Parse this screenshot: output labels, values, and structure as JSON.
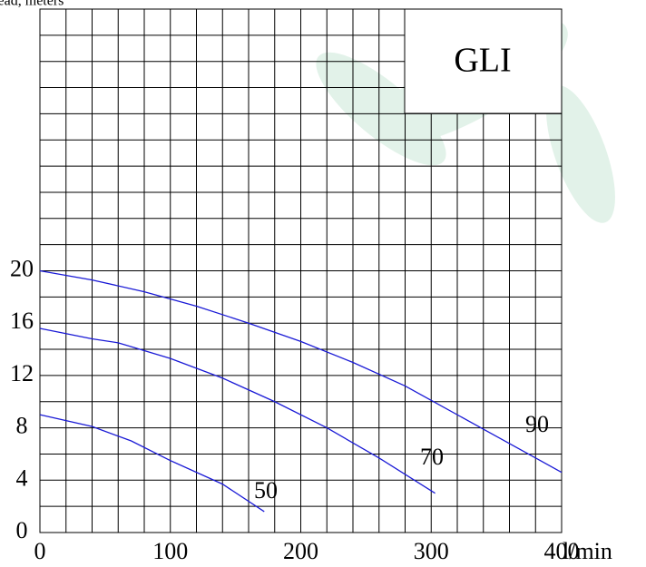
{
  "chart_data": {
    "type": "line",
    "y_label": "Head, meters",
    "x_label": "l/min",
    "annotation": "GLI",
    "xlim": [
      0,
      400
    ],
    "xticks": [
      0,
      100,
      200,
      300,
      400
    ],
    "ylim": [
      0,
      40
    ],
    "yticks": [
      0,
      4,
      8,
      12,
      16,
      20
    ],
    "grid": true,
    "series": [
      {
        "name": "90",
        "color": "#1a1ad6",
        "x": [
          0,
          40,
          80,
          120,
          160,
          200,
          240,
          280,
          300,
          340,
          400
        ],
        "values": [
          20,
          19.3,
          18.4,
          17.3,
          16.0,
          14.6,
          13.0,
          11.2,
          10.1,
          7.9,
          4.6
        ]
      },
      {
        "name": "70",
        "color": "#1a1ad6",
        "x": [
          0,
          40,
          60,
          100,
          140,
          180,
          220,
          260,
          303
        ],
        "values": [
          15.6,
          14.8,
          14.5,
          13.3,
          11.8,
          10.0,
          8.0,
          5.7,
          3.0
        ]
      },
      {
        "name": "50",
        "color": "#1a1ad6",
        "x": [
          0,
          40,
          70,
          100,
          140,
          172
        ],
        "values": [
          9,
          8.1,
          7.0,
          5.5,
          3.7,
          1.6
        ]
      }
    ]
  }
}
